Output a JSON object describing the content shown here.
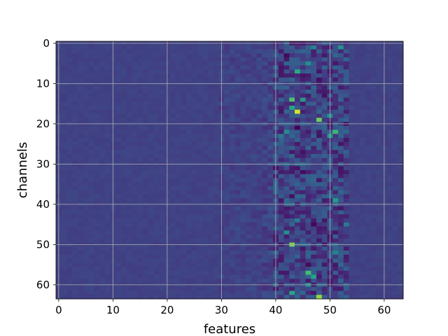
{
  "chart_data": {
    "type": "heatmap",
    "title": "",
    "xlabel": "features",
    "ylabel": "channels",
    "xlim": [
      -0.5,
      63.5
    ],
    "ylim": [
      63.5,
      -0.5
    ],
    "y_inverted": true,
    "grid": true,
    "colormap": "viridis",
    "n_cols": 64,
    "n_rows": 64,
    "xticks": [
      0,
      10,
      20,
      30,
      40,
      50,
      60
    ],
    "yticks": [
      0,
      10,
      20,
      30,
      40,
      50,
      60
    ],
    "background_value": 0.2,
    "band_region": {
      "x_from": 40,
      "x_to": 53,
      "description": "high-variance feature band"
    },
    "hotspots": [
      {
        "x": 44,
        "y": 17,
        "value": 0.95
      },
      {
        "x": 48,
        "y": 63,
        "value": 0.85
      },
      {
        "x": 43,
        "y": 50,
        "value": 0.8
      },
      {
        "x": 48,
        "y": 19,
        "value": 0.78
      },
      {
        "x": 43,
        "y": 14,
        "value": 0.72
      },
      {
        "x": 46,
        "y": 57,
        "value": 0.7
      },
      {
        "x": 51,
        "y": 22,
        "value": 0.68
      },
      {
        "x": 43,
        "y": 62,
        "value": 0.6
      },
      {
        "x": 44,
        "y": 7,
        "value": 0.62
      },
      {
        "x": 43,
        "y": 16,
        "value": 0.6
      },
      {
        "x": 51,
        "y": 39,
        "value": 0.55
      },
      {
        "x": 45,
        "y": 14,
        "value": 0.55
      },
      {
        "x": 47,
        "y": 58,
        "value": 0.58
      },
      {
        "x": 50,
        "y": 23,
        "value": 0.55
      },
      {
        "x": 46,
        "y": 5,
        "value": 0.5
      },
      {
        "x": 42,
        "y": 47,
        "value": 0.5
      },
      {
        "x": 46,
        "y": 60,
        "value": 0.5
      },
      {
        "x": 52,
        "y": 1,
        "value": 0.52
      },
      {
        "x": 50,
        "y": 18,
        "value": 0.5
      },
      {
        "x": 51,
        "y": 52,
        "value": 0.45
      },
      {
        "x": 47,
        "y": 1,
        "value": 0.45
      },
      {
        "x": 42,
        "y": 22,
        "value": 0.48
      },
      {
        "x": 41,
        "y": 23,
        "value": 0.42
      },
      {
        "x": 53,
        "y": 45,
        "value": 0.42
      },
      {
        "x": 44,
        "y": 44,
        "value": 0.42
      }
    ],
    "darkspots": [
      {
        "x": 44,
        "y": 21,
        "value": 0.0
      },
      {
        "x": 42,
        "y": 3,
        "value": 0.02
      },
      {
        "x": 47,
        "y": 45,
        "value": 0.02
      },
      {
        "x": 45,
        "y": 32,
        "value": 0.03
      },
      {
        "x": 48,
        "y": 9,
        "value": 0.04
      },
      {
        "x": 46,
        "y": 55,
        "value": 0.03
      },
      {
        "x": 45,
        "y": 27,
        "value": 0.05
      },
      {
        "x": 49,
        "y": 13,
        "value": 0.05
      },
      {
        "x": 43,
        "y": 38,
        "value": 0.05
      },
      {
        "x": 50,
        "y": 48,
        "value": 0.05
      }
    ]
  }
}
